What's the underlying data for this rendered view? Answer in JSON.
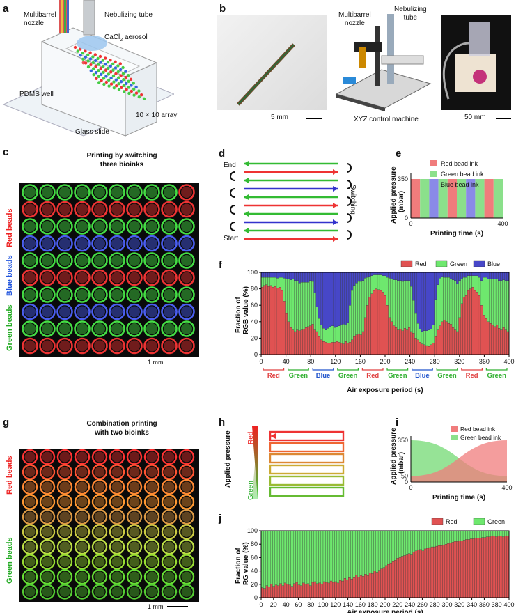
{
  "panels": {
    "a": {
      "letter": "a",
      "multibarrel": "Multibarrel\nnozzle",
      "nebulizing": "Nebulizing tube",
      "aerosol": "CaCl",
      "aerosol_sub": "2",
      "aerosol_tail": " aerosol",
      "pdms": "PDMS well",
      "array": "10 × 10 array",
      "glass": "Glass slide"
    },
    "b": {
      "letter": "b",
      "multibarrel": "Multibarrel\nnozzle",
      "nebulizing": "Nebulizing\ntube",
      "scale1": "5 mm",
      "xyz": "XYZ control machine",
      "scale2": "50 mm"
    },
    "c": {
      "letter": "c",
      "title1": "Printing by switching",
      "title2": "three bioinks",
      "red": "Red beads",
      "blue": "Blue beads",
      "green": "Green beads",
      "scale": "1 mm"
    },
    "d": {
      "letter": "d",
      "end": "End",
      "start": "Start",
      "switching": "Switching"
    },
    "e": {
      "letter": "e",
      "ylabel1": "Applied pressure",
      "ylabel2": "(mbar)",
      "xlabel": "Printing time (s)",
      "legend": [
        "Red bead ink",
        "Green bead ink",
        "Blue bead ink"
      ],
      "y350": "350",
      "y0": "0",
      "x0": "0",
      "x400": "400"
    },
    "f": {
      "letter": "f",
      "ylabel1": "Fraction of",
      "ylabel2": "RGB value (%)",
      "xlabel": "Air exposure period (s)",
      "legend": [
        "Red",
        "Green",
        "Blue"
      ],
      "segments": [
        "Red",
        "Green",
        "Blue",
        "Green",
        "Red",
        "Green",
        "Blue",
        "Green",
        "Red",
        "Green"
      ]
    },
    "g": {
      "letter": "g",
      "title1": "Combination printing",
      "title2": "with two bioinks",
      "red": "Red beads",
      "green": "Green beads",
      "scale": "1 mm"
    },
    "h": {
      "letter": "h",
      "ylabel": "Applied pressure",
      "red": "Red",
      "green": "Green"
    },
    "i": {
      "letter": "i",
      "ylabel1": "Applied pressure",
      "ylabel2": "(mbar)",
      "xlabel": "Printing time (s)",
      "legend": [
        "Red bead ink",
        "Green bead ink"
      ],
      "y350": "350",
      "y50": "50",
      "y0": "0",
      "x0": "0",
      "x400": "400"
    },
    "j": {
      "letter": "j",
      "ylabel1": "Fraction of",
      "ylabel2": "RG value (%)",
      "xlabel": "Air exposure period (s)",
      "legend": [
        "Red",
        "Green"
      ]
    }
  },
  "colors": {
    "red": "#e05252",
    "green": "#6ee86e",
    "blue": "#4747c8",
    "legend_red": "#f07c7c",
    "legend_green": "#8be08b",
    "legend_blue": "#8a8ae8"
  },
  "chart_data": [
    {
      "id": "e",
      "type": "area",
      "xlabel": "Printing time (s)",
      "ylabel": "Applied pressure (mbar)",
      "xlim": [
        0,
        400
      ],
      "ylim": [
        0,
        350
      ],
      "sequence": [
        "Red",
        "Green",
        "Blue",
        "Green",
        "Red",
        "Green",
        "Blue",
        "Green",
        "Red",
        "Green"
      ],
      "pressure": 350
    },
    {
      "id": "f",
      "type": "bar",
      "xlabel": "Air exposure period (s)",
      "ylabel": "Fraction of RGB value (%)",
      "xlim": [
        0,
        400
      ],
      "ylim": [
        0,
        100
      ],
      "x_ticks": [
        0,
        40,
        80,
        120,
        160,
        200,
        240,
        280,
        320,
        360,
        400
      ],
      "y_ticks": [
        0,
        20,
        40,
        60,
        80,
        100
      ],
      "series": [
        {
          "name": "Red",
          "values": [
            82,
            84,
            85,
            83,
            84,
            82,
            83,
            81,
            82,
            78,
            65,
            50,
            40,
            33,
            30,
            28,
            30,
            29,
            30,
            31,
            33,
            34,
            35,
            37,
            30,
            28,
            22,
            18,
            16,
            15,
            14,
            14,
            15,
            15,
            16,
            15,
            14,
            13,
            16,
            14,
            15,
            18,
            22,
            24,
            25,
            24,
            28,
            45,
            60,
            70,
            74,
            78,
            80,
            79,
            78,
            76,
            72,
            60,
            45,
            40,
            35,
            33,
            30,
            31,
            29,
            32,
            30,
            33,
            28,
            26,
            20,
            18,
            15,
            13,
            12,
            11,
            10,
            12,
            14,
            22,
            30,
            35,
            40,
            42,
            40,
            38,
            37,
            33,
            30,
            28,
            45,
            62,
            70,
            72,
            78,
            80,
            82,
            78,
            76,
            72,
            60,
            48,
            44,
            40,
            38,
            36,
            34,
            36,
            32,
            30,
            33,
            30,
            28
          ]
        },
        {
          "name": "Green",
          "values": [
            12,
            10,
            9,
            11,
            10,
            12,
            11,
            12,
            12,
            16,
            28,
            42,
            52,
            58,
            62,
            62,
            60,
            58,
            58,
            57,
            55,
            54,
            55,
            52,
            45,
            30,
            22,
            18,
            16,
            15,
            18,
            20,
            20,
            18,
            18,
            20,
            22,
            24,
            20,
            25,
            45,
            60,
            62,
            63,
            64,
            65,
            62,
            48,
            34,
            25,
            22,
            19,
            17,
            18,
            19,
            20,
            24,
            34,
            48,
            52,
            56,
            58,
            60,
            59,
            60,
            58,
            60,
            57,
            55,
            40,
            30,
            20,
            16,
            15,
            17,
            18,
            20,
            19,
            22,
            45,
            55,
            58,
            55,
            52,
            54,
            56,
            55,
            58,
            60,
            58,
            45,
            30,
            24,
            22,
            18,
            16,
            14,
            18,
            20,
            22,
            30,
            46,
            50,
            52,
            54,
            56,
            58,
            56,
            58,
            60,
            58,
            60,
            62
          ]
        }
      ],
      "legend": [
        "Red",
        "Green",
        "Blue"
      ],
      "segments": [
        "Red",
        "Green",
        "Blue",
        "Green",
        "Red",
        "Green",
        "Blue",
        "Green",
        "Red",
        "Green"
      ]
    },
    {
      "id": "i",
      "type": "area",
      "xlabel": "Printing time (s)",
      "ylabel": "Applied pressure (mbar)",
      "xlim": [
        0,
        400
      ],
      "y_ticks": [
        0,
        50,
        350
      ],
      "series": [
        {
          "name": "Red bead ink",
          "from": 50,
          "to": 350
        },
        {
          "name": "Green bead ink",
          "from": 350,
          "to": 50
        }
      ]
    },
    {
      "id": "j",
      "type": "bar",
      "xlabel": "Air exposure period (s)",
      "ylabel": "Fraction of RG value (%)",
      "xlim": [
        0,
        400
      ],
      "ylim": [
        0,
        100
      ],
      "x_ticks": [
        0,
        20,
        40,
        60,
        80,
        100,
        120,
        140,
        160,
        180,
        200,
        220,
        240,
        260,
        280,
        300,
        320,
        340,
        360,
        380,
        400
      ],
      "y_ticks": [
        0,
        20,
        40,
        60,
        80,
        100
      ],
      "series": [
        {
          "name": "Red",
          "values": [
            15,
            14,
            18,
            16,
            20,
            17,
            19,
            18,
            21,
            18,
            22,
            20,
            19,
            17,
            21,
            23,
            19,
            18,
            22,
            20,
            21,
            18,
            23,
            24,
            21,
            22,
            20,
            24,
            23,
            22,
            25,
            23,
            24,
            22,
            26,
            25,
            29,
            27,
            30,
            28,
            30,
            34,
            31,
            33,
            32,
            35,
            33,
            37,
            36,
            40,
            38,
            41,
            43,
            45,
            48,
            50,
            52,
            54,
            56,
            59,
            60,
            62,
            63,
            64,
            66,
            64,
            68,
            70,
            71,
            72,
            70,
            73,
            74,
            75,
            76,
            76,
            77,
            78,
            78,
            79,
            80,
            81,
            82,
            83,
            84,
            84,
            85,
            85,
            86,
            87,
            87,
            88,
            88,
            89,
            89,
            89,
            90,
            90,
            91,
            91,
            92,
            92,
            91,
            92,
            92,
            91,
            92,
            92
          ]
        }
      ],
      "legend": [
        "Red",
        "Green"
      ]
    }
  ]
}
